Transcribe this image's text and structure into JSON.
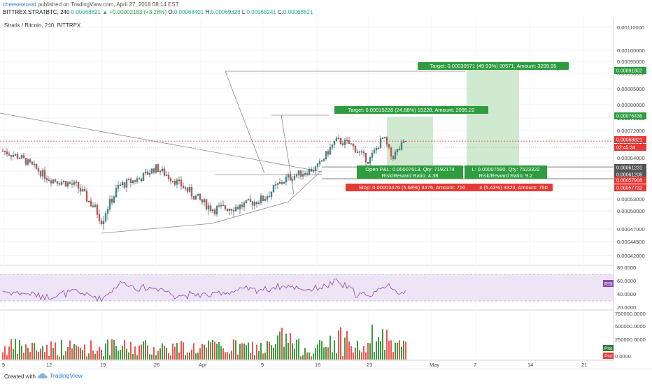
{
  "header": {
    "author": "cheeseotoast",
    "published_text": "published on TradingView.com, April 27, 2018 08:14 EST",
    "symbol": "BITTREX:STRATBTC, 240",
    "last_price": "0.00068821",
    "change": "+0.00002183 (+3.28%)",
    "open_label": "O:",
    "open_value": "0.00068401",
    "high_label": "H:",
    "high_value": "0.00069328",
    "low_label": "L:",
    "low_value": "0.00068241",
    "close_label": "C:",
    "close_value": "0.00068821"
  },
  "chart": {
    "pane_title": "Stratis / Bitcoin, 240, BITTREX",
    "price_axis_ticks": [
      "0.00110000",
      "0.00100000",
      "0.00095000",
      "0.00090000",
      "0.00085000",
      "0.00080000",
      "0.00076000",
      "0.00072000",
      "0.00068000",
      "0.00064000",
      "0.00060000",
      "0.00056000",
      "0.00053000",
      "0.00050000",
      "0.00047000",
      "0.00044500",
      "0.00042000"
    ],
    "price_axis_labels": [
      {
        "text": "0.00091802",
        "color": "#2e9c3f"
      },
      {
        "text": "0.00076436",
        "color": "#2e9c3f"
      },
      {
        "text": "0.00068821",
        "color": "#e53935"
      },
      {
        "text": "02:45:34",
        "color": "#e53935"
      },
      {
        "text": "0.00061231",
        "color": "#555555"
      },
      {
        "text": "0.00061208",
        "color": "#555555"
      },
      {
        "text": "0.00057908",
        "color": "#e53935"
      },
      {
        "text": "0.00057732",
        "color": "#e53935"
      }
    ],
    "trade_labels": {
      "target1": "Target: 0.00030571 (49.93%) 30571, Amount: 3299.95",
      "target2": "Target: 0.00015228 (24.88%) 15228, Amount: 2095.22",
      "pnl2_line1": "Open P&L: 0.00007613, Qty: 7192174",
      "pnl2_line2": "Risk/Reward Ratio: 4.38",
      "pnl1_line1": "L: 0.00007590, Qty: 7523322",
      "pnl1_line2": "Risk/Reward Ratio: 9.2",
      "stop2": "Stop: 0.00003476 (5.68%) 3476, Amount: 750",
      "stop1": "3 (5.43%) 3323, Amount: 750"
    },
    "rsi_label": "RSI",
    "rsi_axis_ticks": [
      "80.0000",
      "60.0000",
      "40.0000",
      "20.0000"
    ],
    "volume_axis_ticks": [
      "750000.0000",
      "500000.0000",
      "250000.0000",
      "0.0000"
    ],
    "volume_labels": [
      "Plot",
      "Plot"
    ],
    "time_axis_ticks": [
      "5",
      "12",
      "19",
      "26",
      "Apr",
      "9",
      "16",
      "23",
      "May",
      "7",
      "14",
      "21"
    ],
    "colors": {
      "up": "#26a69a",
      "down": "#ef5350",
      "target_fill": "#c8e6c9",
      "target_label": "#2e9c3f",
      "stop_label": "#e53935",
      "rsi_line": "#8e44ad",
      "rsi_band": "#e1d5f0",
      "vol_up": "#3e9b3e",
      "vol_down": "#ef5350"
    }
  },
  "footer": {
    "created_with": "Created with",
    "brand": "TradingView"
  },
  "chart_data": {
    "type": "candlestick",
    "symbol": "STRATBTC",
    "exchange": "BITTREX",
    "interval": "240",
    "x_dates": [
      "5",
      "12",
      "19",
      "26",
      "Apr",
      "9",
      "16",
      "23",
      "May",
      "7",
      "14",
      "21"
    ],
    "price_ylim": [
      0.00042,
      0.0011
    ],
    "close_series": [
      {
        "x": "5",
        "y": 0.00063
      },
      {
        "x": "12",
        "y": 0.00057
      },
      {
        "x": "19",
        "y": 0.000495
      },
      {
        "x": "26",
        "y": 0.00058
      },
      {
        "x": "Apr",
        "y": 0.000505
      },
      {
        "x": "9",
        "y": 0.000525
      },
      {
        "x": "16",
        "y": 0.00061
      },
      {
        "x": "23",
        "y": 0.00066
      },
      {
        "x": "27",
        "y": 0.00068821
      }
    ],
    "trades": [
      {
        "entry": 0.00061231,
        "target": 0.00091802,
        "stop": 0.00057908,
        "rr": 9.2
      },
      {
        "entry": 0.00061208,
        "target": 0.00076436,
        "stop": 0.00057732,
        "rr": 4.38
      }
    ],
    "rsi": {
      "ylim": [
        20,
        80
      ],
      "band": [
        30,
        70
      ]
    },
    "volume": {
      "ylim": [
        0,
        750000
      ]
    }
  }
}
